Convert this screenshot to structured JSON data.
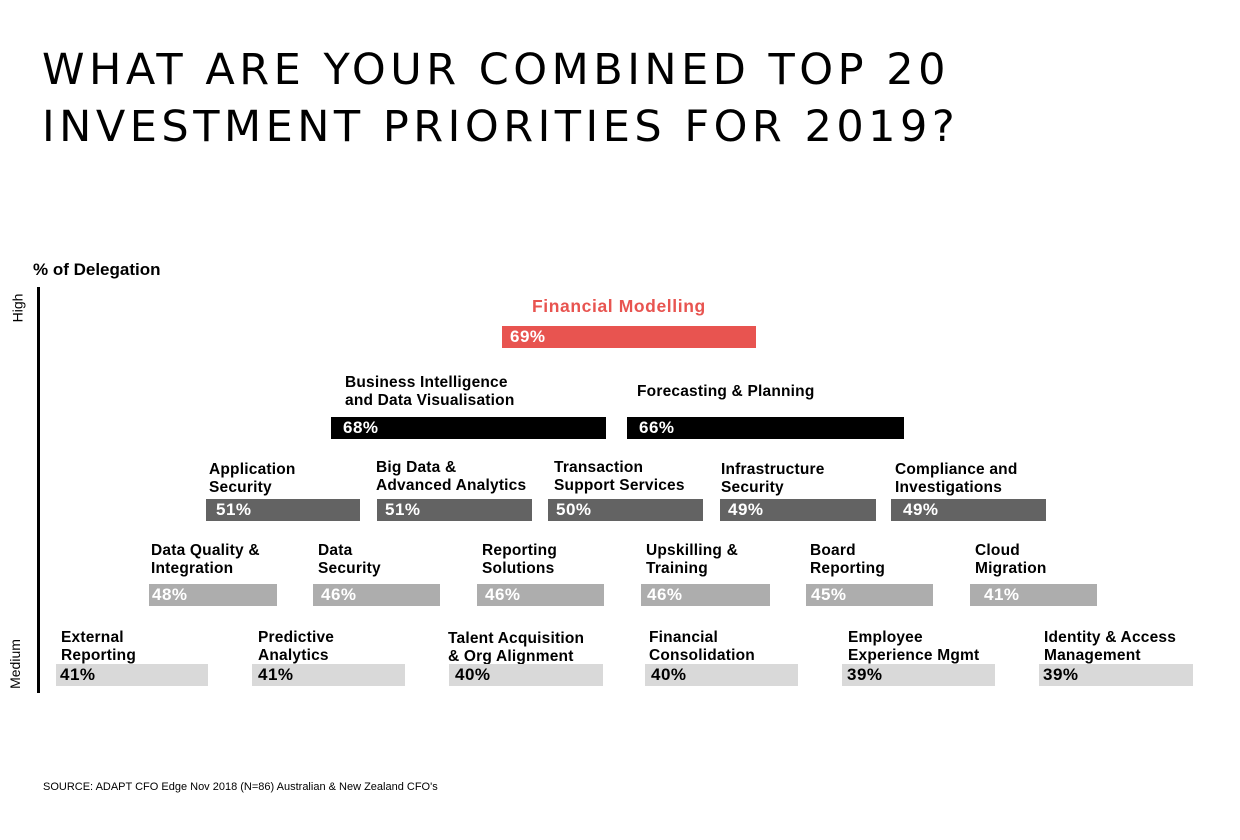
{
  "title_lines": [
    "WHAT ARE YOUR COMBINED TOP 20",
    "INVESTMENT PRIORITIES FOR 2019?"
  ],
  "source": "SOURCE: ADAPT CFO Edge Nov 2018 (N=86) Australian & New Zealand CFO's",
  "colors": {
    "highlight": "#e85450",
    "tier_black": "#000000",
    "tier_dark": "#636363",
    "tier_mid": "#adadad",
    "tier_light": "#d9d9d9",
    "text_dark": "#000000",
    "text_light": "#ffffff"
  },
  "chart_data": {
    "type": "bar",
    "title": "WHAT ARE YOUR COMBINED TOP 20 INVESTMENT PRIORITIES FOR 2019?",
    "ylabel": "% of Delegation",
    "y_levels": [
      "High",
      "Medium"
    ],
    "unit": "%",
    "items": [
      {
        "label_lines": [
          "Financial Modelling"
        ],
        "value": 69,
        "tier": "highlight"
      },
      {
        "label_lines": [
          "Business Intelligence",
          "and Data Visualisation"
        ],
        "value": 68,
        "tier": "black"
      },
      {
        "label_lines": [
          "Forecasting & Planning"
        ],
        "value": 66,
        "tier": "black"
      },
      {
        "label_lines": [
          "Application",
          "Security"
        ],
        "value": 51,
        "tier": "dark"
      },
      {
        "label_lines": [
          "Big Data &",
          "Advanced Analytics"
        ],
        "value": 51,
        "tier": "dark"
      },
      {
        "label_lines": [
          "Transaction",
          "Support Services"
        ],
        "value": 50,
        "tier": "dark"
      },
      {
        "label_lines": [
          "Infrastructure",
          "Security"
        ],
        "value": 49,
        "tier": "dark"
      },
      {
        "label_lines": [
          "Compliance and",
          "Investigations"
        ],
        "value": 49,
        "tier": "dark"
      },
      {
        "label_lines": [
          "Data Quality &",
          "Integration"
        ],
        "value": 48,
        "tier": "mid"
      },
      {
        "label_lines": [
          "Data",
          "Security"
        ],
        "value": 46,
        "tier": "mid"
      },
      {
        "label_lines": [
          "Reporting",
          "Solutions"
        ],
        "value": 46,
        "tier": "mid"
      },
      {
        "label_lines": [
          "Upskilling &",
          "Training"
        ],
        "value": 46,
        "tier": "mid"
      },
      {
        "label_lines": [
          "Board",
          "Reporting"
        ],
        "value": 45,
        "tier": "mid"
      },
      {
        "label_lines": [
          "Cloud",
          "Migration"
        ],
        "value": 41,
        "tier": "mid"
      },
      {
        "label_lines": [
          "External",
          "Reporting"
        ],
        "value": 41,
        "tier": "light"
      },
      {
        "label_lines": [
          "Predictive",
          "Analytics"
        ],
        "value": 41,
        "tier": "light"
      },
      {
        "label_lines": [
          "Talent Acquisition",
          "& Org Alignment"
        ],
        "value": 40,
        "tier": "light"
      },
      {
        "label_lines": [
          "Financial",
          "Consolidation"
        ],
        "value": 40,
        "tier": "light"
      },
      {
        "label_lines": [
          "Employee",
          "Experience Mgmt"
        ],
        "value": 39,
        "tier": "light"
      },
      {
        "label_lines": [
          "Identity & Access",
          "Management"
        ],
        "value": 39,
        "tier": "light"
      }
    ]
  }
}
